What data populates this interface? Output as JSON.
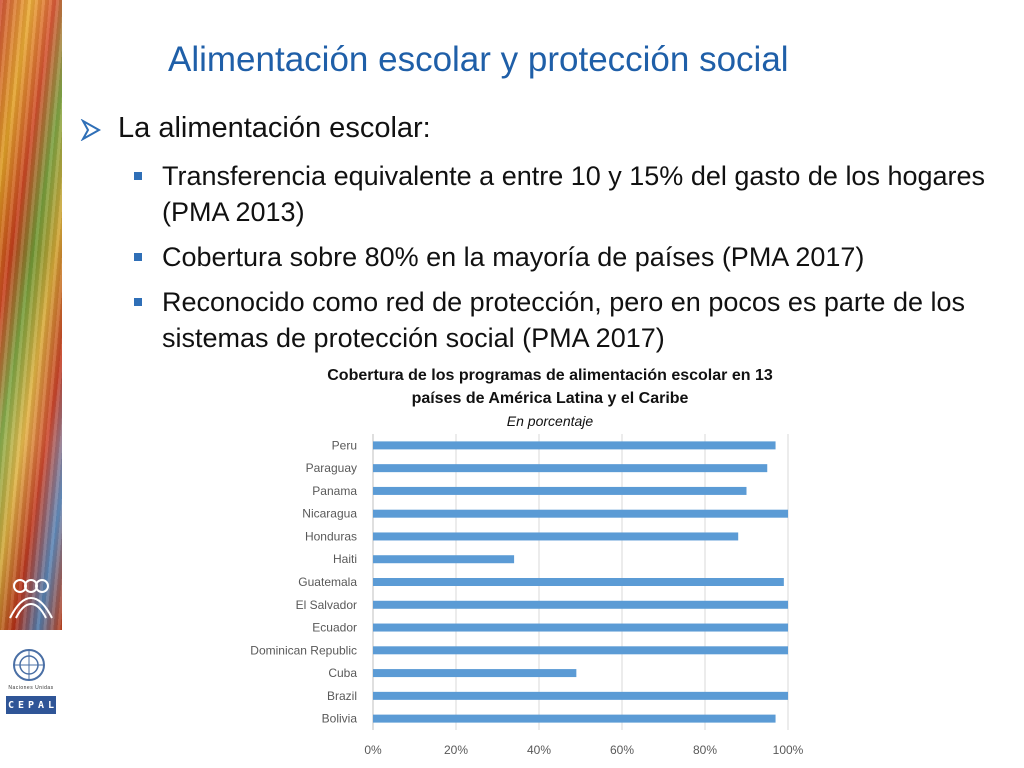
{
  "slide": {
    "title": "Alimentación escolar y protección social",
    "bullet": "La alimentación escolar:",
    "sub_bullets": [
      "Transferencia equivalente a entre 10 y 15% del gasto de los hogares (PMA 2013)",
      "Cobertura sobre 80% en la mayoría de países (PMA 2017)",
      "Reconocido como red de protección, pero en pocos es parte de los sistemas de protección social (PMA 2017)"
    ]
  },
  "branding": {
    "un_caption": "Naciones Unidas",
    "cepal_letters": [
      "C",
      "E",
      "P",
      "A",
      "L"
    ]
  },
  "chart_data": {
    "type": "bar",
    "orientation": "horizontal",
    "title_line1": "Cobertura de los programas de alimentación escolar en 13",
    "title_line2": "países de América Latina y el Caribe",
    "subtitle": "En porcentaje",
    "categories": [
      "Peru",
      "Paraguay",
      "Panama",
      "Nicaragua",
      "Honduras",
      "Haiti",
      "Guatemala",
      "El Salvador",
      "Ecuador",
      "Dominican Republic",
      "Cuba",
      "Brazil",
      "Bolivia"
    ],
    "values": [
      97,
      95,
      90,
      100,
      88,
      34,
      99,
      100,
      100,
      100,
      49,
      100,
      97
    ],
    "xlim": [
      0,
      100
    ],
    "xticks": [
      "0%",
      "20%",
      "40%",
      "60%",
      "80%",
      "100%"
    ],
    "grid": true,
    "bar_color": "#5b9bd5"
  }
}
